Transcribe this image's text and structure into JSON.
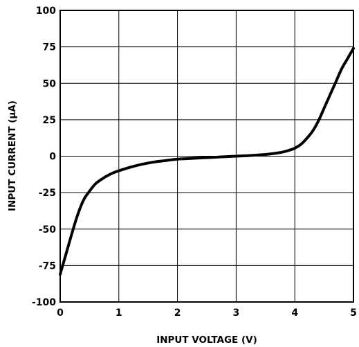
{
  "chart_data": {
    "type": "line",
    "xlabel": "INPUT VOLTAGE (V)",
    "ylabel": "INPUT CURRENT (µA)",
    "xlim": [
      0,
      5
    ],
    "ylim": [
      -100,
      100
    ],
    "grid": true,
    "x_ticks": [
      0,
      1,
      2,
      3,
      4,
      5
    ],
    "y_ticks": [
      -100,
      -75,
      -50,
      -25,
      0,
      25,
      50,
      75,
      100
    ],
    "x_tick_labels": [
      "0",
      "1",
      "2",
      "3",
      "4",
      "5"
    ],
    "y_tick_labels": [
      "-100",
      "-75",
      "-50",
      "-25",
      "0",
      "25",
      "50",
      "75",
      "100"
    ],
    "series": [
      {
        "color": "#000000",
        "x": [
          0,
          0.1,
          0.2,
          0.3,
          0.4,
          0.5,
          0.6,
          0.7,
          0.8,
          0.9,
          1.0,
          1.2,
          1.4,
          1.6,
          1.8,
          2.0,
          2.25,
          2.5,
          2.75,
          3.0,
          3.25,
          3.5,
          3.75,
          3.9,
          4.0,
          4.1,
          4.2,
          4.3,
          4.4,
          4.5,
          4.6,
          4.7,
          4.8,
          4.9,
          5.0
        ],
        "y": [
          -81,
          -67,
          -53,
          -40,
          -30,
          -24,
          -19,
          -16,
          -13.5,
          -11.5,
          -10,
          -7.5,
          -5.5,
          -4,
          -3,
          -2,
          -1.5,
          -1,
          -0.5,
          0,
          0.5,
          1.2,
          2.5,
          4,
          5.5,
          8,
          12,
          17,
          24,
          33,
          42,
          51,
          60,
          67,
          74
        ]
      }
    ]
  }
}
